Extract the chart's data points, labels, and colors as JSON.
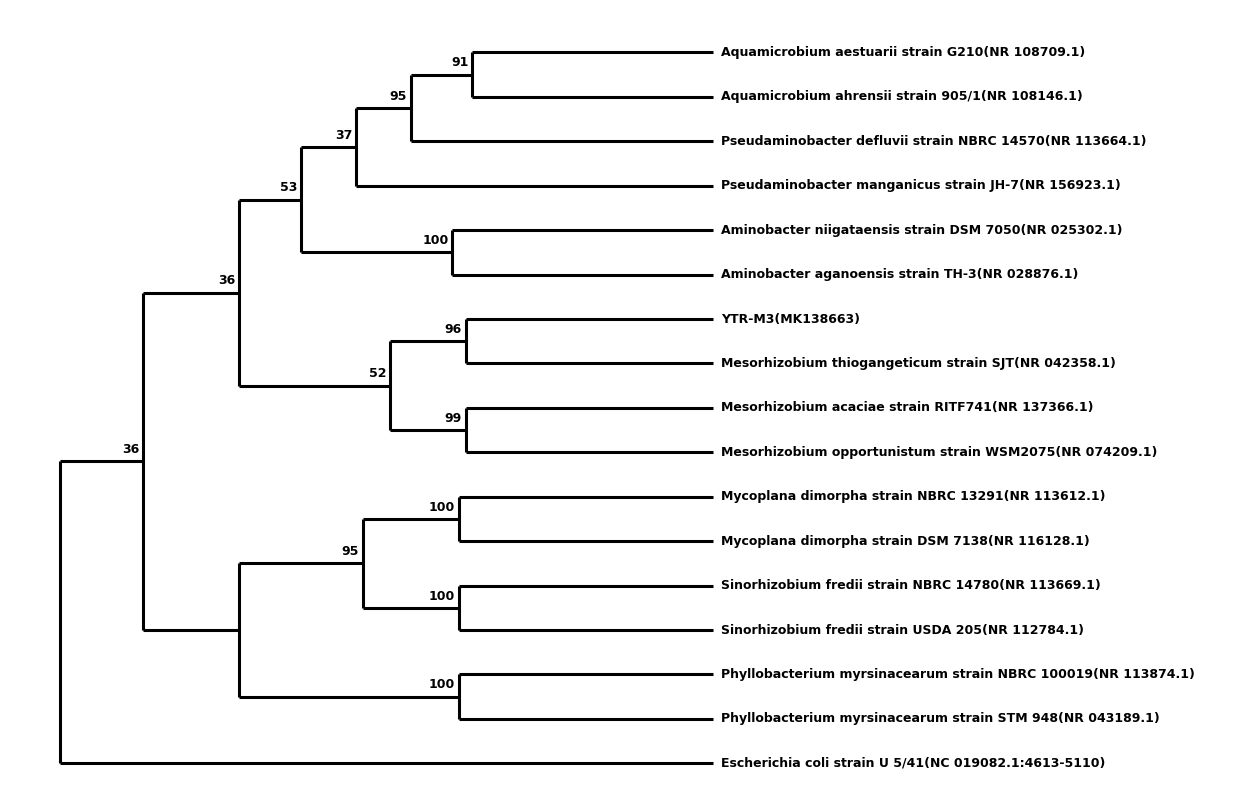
{
  "leaves": [
    "Aquamicrobium aestuarii strain G210(NR 108709.1)",
    "Aquamicrobium ahrensii strain 905/1(NR 108146.1)",
    "Pseudaminobacter defluvii strain NBRC 14570(NR 113664.1)",
    "Pseudaminobacter manganicus strain JH-7(NR 156923.1)",
    "Aminobacter niigataensis strain DSM 7050(NR 025302.1)",
    "Aminobacter aganoensis strain TH-3(NR 028876.1)",
    "YTR-M3(MK138663)",
    "Mesorhizobium thiogangeticum strain SJT(NR 042358.1)",
    "Mesorhizobium acaciae strain RITF741(NR 137366.1)",
    "Mesorhizobium opportunistum strain WSM2075(NR 074209.1)",
    "Mycoplana dimorpha strain NBRC 13291(NR 113612.1)",
    "Mycoplana dimorpha strain DSM 7138(NR 116128.1)",
    "Sinorhizobium fredii strain NBRC 14780(NR 113669.1)",
    "Sinorhizobium fredii strain USDA 205(NR 112784.1)",
    "Phyllobacterium myrsinacearum strain NBRC 100019(NR 113874.1)",
    "Phyllobacterium myrsinacearum strain STM 948(NR 043189.1)",
    "Escherichia coli strain U 5/41(NC 019082.1:4613-5110)"
  ],
  "bootstrap_values": {
    "N91": 91,
    "N95": 95,
    "N37": 37,
    "N100a": 100,
    "N53": 53,
    "N96": 96,
    "N99": 99,
    "N52": 52,
    "N36a": 36,
    "N100b": 100,
    "N100c": 100,
    "N95b": 95,
    "N100d": 100,
    "N36main": 36
  },
  "background_color": "#ffffff",
  "line_color": "#000000",
  "line_width": 2.2,
  "text_color": "#000000",
  "label_fontsize": 9.0,
  "bootstrap_fontsize": 9.0
}
